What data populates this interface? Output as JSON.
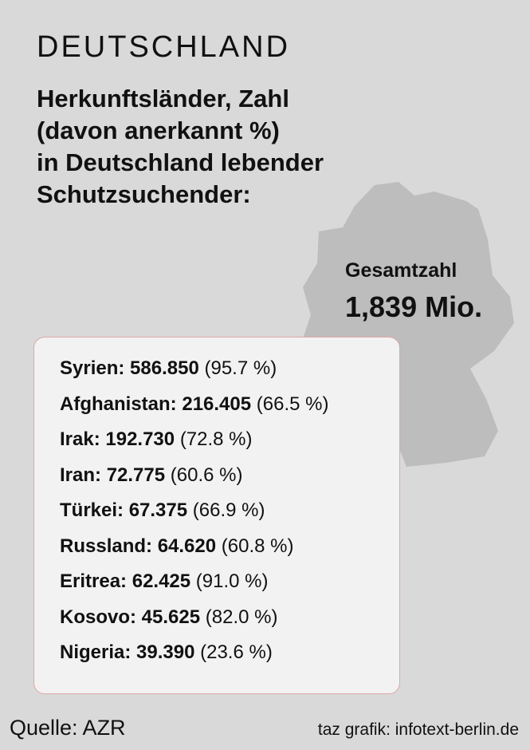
{
  "header": {
    "kicker": "DEUTSCHLAND",
    "title_lines": [
      "Herkunftsländer, Zahl",
      "(davon anerkannt %)",
      "in Deutschland lebender",
      "Schutzsuchender:"
    ]
  },
  "total": {
    "label": "Gesamtzahl",
    "value": "1,839 Mio."
  },
  "rows": [
    {
      "country": "Syrien:",
      "count": "586.850",
      "share": "(95.7 %)"
    },
    {
      "country": "Afghanistan:",
      "count": "216.405",
      "share": "(66.5 %)"
    },
    {
      "country": "Irak:",
      "count": "192.730",
      "share": "(72.8 %)"
    },
    {
      "country": "Iran:",
      "count": "72.775",
      "share": "(60.6 %)"
    },
    {
      "country": "Türkei:",
      "count": "67.375",
      "share": "(66.9 %)"
    },
    {
      "country": "Russland:",
      "count": "64.620",
      "share": "(60.8 %)"
    },
    {
      "country": "Eritrea:",
      "count": "62.425",
      "share": "(91.0 %)"
    },
    {
      "country": "Kosovo:",
      "count": "45.625",
      "share": "(82.0 %)"
    },
    {
      "country": "Nigeria:",
      "count": "39.390",
      "share": "(23.6 %)"
    }
  ],
  "footer": {
    "source": "Quelle: AZR",
    "credit": "taz grafik: infotext-berlin.de"
  }
}
